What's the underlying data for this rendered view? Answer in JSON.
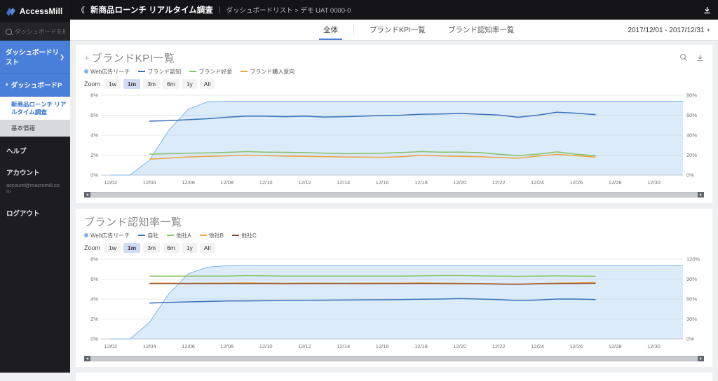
{
  "sidebar": {
    "logo": "AccessMill",
    "search_placeholder": "ダッシュボードを検索",
    "nav_list_label": "ダッシュボードリスト",
    "nav_list_chevron": "❯",
    "nav_group_label": "ダッシュボードP",
    "nav_group_caret": "▾",
    "active_item": "新商品ローンチ リアルタイム調査",
    "basic_info_item": "基本情報",
    "help_label": "ヘルプ",
    "account_label": "アカウント",
    "account_email": "account@macromill.com",
    "logout_label": "ログアウト"
  },
  "header": {
    "collapse_icon": "《",
    "title": "新商品ローンチ リアルタイム調査",
    "separator": "|",
    "breadcrumb": "ダッシュボードリスト > デモ UAT 0000-0"
  },
  "tabbar": {
    "tabs": [
      {
        "label": "全体",
        "active": true
      },
      {
        "label": "ブランドKPI一覧",
        "active": false
      },
      {
        "label": "ブランド認知率一覧",
        "active": false
      }
    ],
    "date_range": "2017/12/01 - 2017/12/31",
    "date_caret": "▾"
  },
  "zoom_controls": {
    "label": "Zoom",
    "buttons": [
      "1w",
      "1m",
      "3m",
      "6m",
      "1y",
      "All"
    ],
    "active": "1m"
  },
  "colors": {
    "accent_blue": "#4a7fd9",
    "area_blue": "#7cb5ec",
    "line_blue": "#3a72b8",
    "line_green": "#87c263",
    "line_orange": "#f0a23c",
    "line_darkred": "#8a4a2e"
  },
  "chart_data": [
    {
      "type": "area",
      "title": "ブランドKPI一覧",
      "x": [
        "12/02",
        "12/03",
        "12/04",
        "12/05",
        "12/06",
        "12/07",
        "12/08",
        "12/09",
        "12/10",
        "12/11",
        "12/12",
        "12/13",
        "12/14",
        "12/15",
        "12/16",
        "12/17",
        "12/18",
        "12/19",
        "12/20",
        "12/21",
        "12/22",
        "12/23",
        "12/24",
        "12/25",
        "12/26",
        "12/27",
        "12/28",
        "12/29",
        "12/30",
        "12/31"
      ],
      "x_tick_labels": [
        "12/02",
        "12/04",
        "12/06",
        "12/08",
        "12/10",
        "12/12",
        "12/14",
        "12/16",
        "12/18",
        "12/20",
        "12/22",
        "12/24",
        "12/26",
        "12/28",
        "12/30"
      ],
      "left_axis": {
        "min": 0,
        "max": 8,
        "ticks": [
          "0%",
          "2%",
          "4%",
          "6%",
          "8%"
        ]
      },
      "right_axis": {
        "min": 0,
        "max": 80,
        "ticks": [
          "0%",
          "20%",
          "40%",
          "60%",
          "80%"
        ]
      },
      "grid": true,
      "legend_position": "top",
      "series": [
        {
          "name": "Web広告リーチ",
          "type": "area",
          "axis": "right",
          "color": "#7cb5ec",
          "fill": "rgba(124,181,236,0.27)",
          "values": [
            0,
            0,
            15,
            45,
            66,
            73.5,
            74,
            74,
            74,
            74,
            74,
            74,
            74,
            74,
            74,
            74,
            74,
            74,
            74,
            74,
            74,
            74,
            74,
            74,
            74,
            74,
            74,
            74,
            74,
            74
          ]
        },
        {
          "name": "ブランド認知",
          "type": "line",
          "axis": "left",
          "color": "#3a72b8",
          "values": [
            null,
            null,
            5.4,
            5.45,
            5.55,
            5.65,
            5.8,
            5.9,
            5.9,
            5.85,
            5.9,
            5.82,
            5.85,
            5.9,
            5.97,
            6.0,
            6.1,
            6.12,
            6.18,
            6.1,
            6.02,
            5.8,
            6.0,
            6.3,
            6.2,
            6.05,
            null,
            null,
            null,
            null
          ]
        },
        {
          "name": "ブランド好意",
          "type": "line",
          "axis": "left",
          "color": "#87c263",
          "values": [
            null,
            null,
            2.1,
            2.15,
            2.2,
            2.22,
            2.28,
            2.35,
            2.3,
            2.28,
            2.25,
            2.2,
            2.15,
            2.17,
            2.2,
            2.27,
            2.35,
            2.3,
            2.3,
            2.25,
            2.1,
            1.95,
            2.1,
            2.32,
            2.1,
            1.93,
            null,
            null,
            null,
            null
          ]
        },
        {
          "name": "ブランド購入意向",
          "type": "line",
          "axis": "left",
          "color": "#f0a23c",
          "values": [
            null,
            null,
            1.6,
            1.7,
            1.82,
            1.88,
            1.93,
            2.0,
            1.95,
            1.9,
            1.88,
            1.85,
            1.82,
            1.8,
            1.78,
            1.84,
            1.98,
            1.92,
            1.88,
            1.84,
            1.76,
            1.7,
            1.9,
            2.08,
            1.95,
            1.8,
            null,
            null,
            null,
            null
          ]
        }
      ]
    },
    {
      "type": "area",
      "title": "ブランド認知率一覧",
      "x": [
        "12/02",
        "12/03",
        "12/04",
        "12/05",
        "12/06",
        "12/07",
        "12/08",
        "12/09",
        "12/10",
        "12/11",
        "12/12",
        "12/13",
        "12/14",
        "12/15",
        "12/16",
        "12/17",
        "12/18",
        "12/19",
        "12/20",
        "12/21",
        "12/22",
        "12/23",
        "12/24",
        "12/25",
        "12/26",
        "12/27",
        "12/28",
        "12/29",
        "12/30",
        "12/31"
      ],
      "x_tick_labels": [
        "12/02",
        "12/04",
        "12/06",
        "12/08",
        "12/10",
        "12/12",
        "12/14",
        "12/16",
        "12/18",
        "12/20",
        "12/22",
        "12/24",
        "12/26",
        "12/28",
        "12/30"
      ],
      "left_axis": {
        "min": 0,
        "max": 8,
        "ticks": [
          "0%",
          "2%",
          "4%",
          "6%",
          "8%"
        ]
      },
      "right_axis": {
        "min": 0,
        "max": 120,
        "ticks": [
          "0%",
          "30%",
          "60%",
          "90%",
          "120%"
        ]
      },
      "grid": true,
      "legend_position": "top",
      "series": [
        {
          "name": "Web広告リーチ",
          "type": "area",
          "axis": "right",
          "color": "#7cb5ec",
          "fill": "rgba(124,181,236,0.27)",
          "values": [
            0,
            0,
            25,
            68,
            98,
            108,
            110,
            110,
            110,
            110,
            110,
            110,
            110,
            110,
            110,
            110,
            110,
            110,
            110,
            110,
            110,
            110,
            110,
            110,
            110,
            110,
            110,
            110,
            110,
            110
          ]
        },
        {
          "name": "自社",
          "type": "line",
          "axis": "left",
          "color": "#3a72b8",
          "values": [
            null,
            null,
            3.6,
            3.66,
            3.72,
            3.76,
            3.8,
            3.82,
            3.83,
            3.85,
            3.88,
            3.89,
            3.9,
            3.92,
            3.93,
            3.95,
            3.98,
            4.0,
            4.05,
            4.0,
            3.95,
            3.85,
            3.9,
            4.0,
            4.0,
            3.95,
            null,
            null,
            null,
            null
          ]
        },
        {
          "name": "他社A",
          "type": "line",
          "axis": "left",
          "color": "#87c263",
          "values": [
            null,
            null,
            6.3,
            6.3,
            6.3,
            6.3,
            6.3,
            6.35,
            6.32,
            6.3,
            6.3,
            6.3,
            6.3,
            6.3,
            6.3,
            6.3,
            6.32,
            6.35,
            6.35,
            6.32,
            6.3,
            6.28,
            6.3,
            6.32,
            6.3,
            6.28,
            null,
            null,
            null,
            null
          ]
        },
        {
          "name": "他社B",
          "type": "line",
          "axis": "left",
          "color": "#f0a23c",
          "values": [
            null,
            null,
            5.6,
            5.6,
            5.58,
            5.6,
            5.6,
            5.62,
            5.6,
            5.58,
            5.6,
            5.6,
            5.58,
            5.6,
            5.6,
            5.6,
            5.62,
            5.6,
            5.58,
            5.56,
            5.52,
            5.5,
            5.55,
            5.6,
            5.62,
            5.65,
            null,
            null,
            null,
            null
          ]
        },
        {
          "name": "他社C",
          "type": "line",
          "axis": "left",
          "color": "#8a4a2e",
          "values": [
            null,
            null,
            5.55,
            5.55,
            5.55,
            5.55,
            5.56,
            5.55,
            5.55,
            5.54,
            5.55,
            5.55,
            5.55,
            5.54,
            5.55,
            5.55,
            5.56,
            5.55,
            5.54,
            5.53,
            5.5,
            5.48,
            5.52,
            5.55,
            5.56,
            5.58,
            null,
            null,
            null,
            null
          ]
        }
      ]
    }
  ]
}
